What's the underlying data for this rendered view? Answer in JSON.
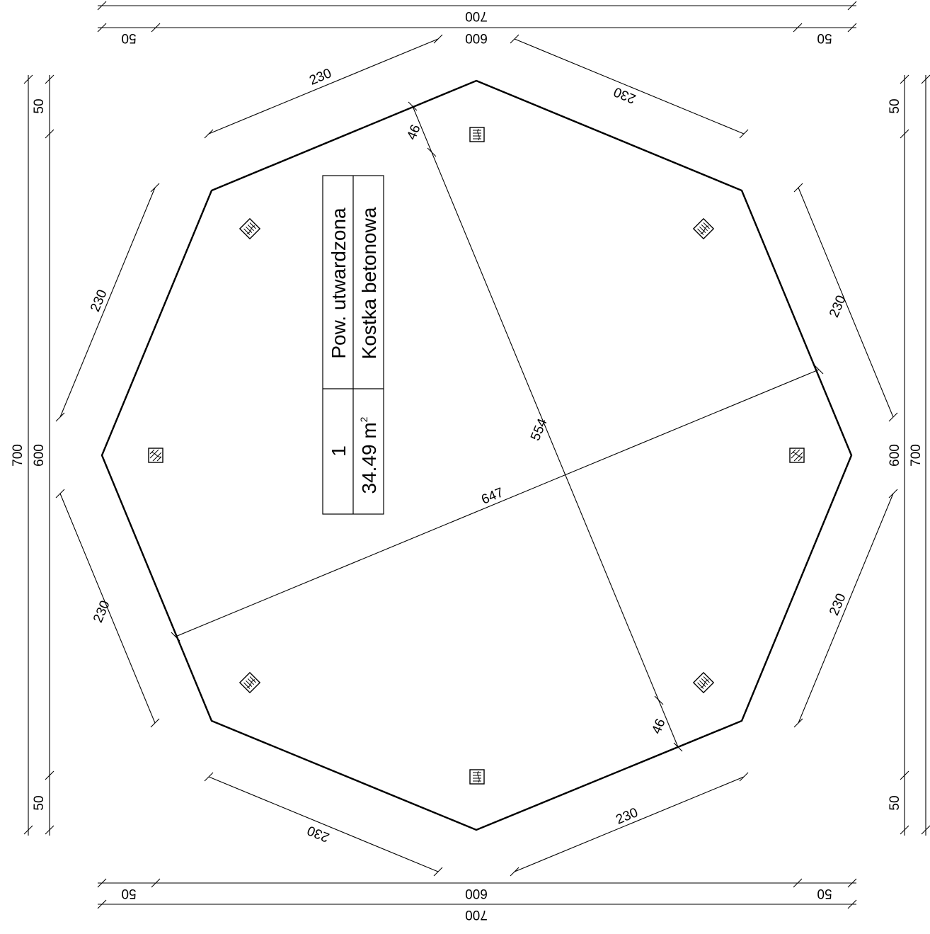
{
  "plan": {
    "dimensions": {
      "overall_top": "700",
      "segments_top": {
        "left": "50",
        "middle": "600",
        "right": "50"
      },
      "overall_bottom": "700",
      "segments_bottom": {
        "left": "50",
        "middle": "600",
        "right": "50"
      },
      "overall_left": "700",
      "segments_left": {
        "top": "50",
        "middle": "600",
        "bottom": "50"
      },
      "overall_right": "700",
      "segments_right": {
        "top": "50",
        "middle": "600",
        "bottom": "50"
      },
      "edges": [
        "230",
        "230",
        "230",
        "230",
        "230",
        "230",
        "230",
        "230"
      ],
      "diagonal_long": "647",
      "diagonal_short": "554",
      "offset_top": "46",
      "offset_bottom": "46"
    },
    "room_table": {
      "number": "1",
      "name": "Pow. utwardzona",
      "area_value": "34.49 m",
      "area_exponent": "2",
      "finish": "Kostka betonowa"
    },
    "symbols": [
      "post-icon",
      "post-icon",
      "post-icon",
      "post-icon",
      "post-icon",
      "post-icon",
      "post-icon",
      "post-icon"
    ]
  }
}
